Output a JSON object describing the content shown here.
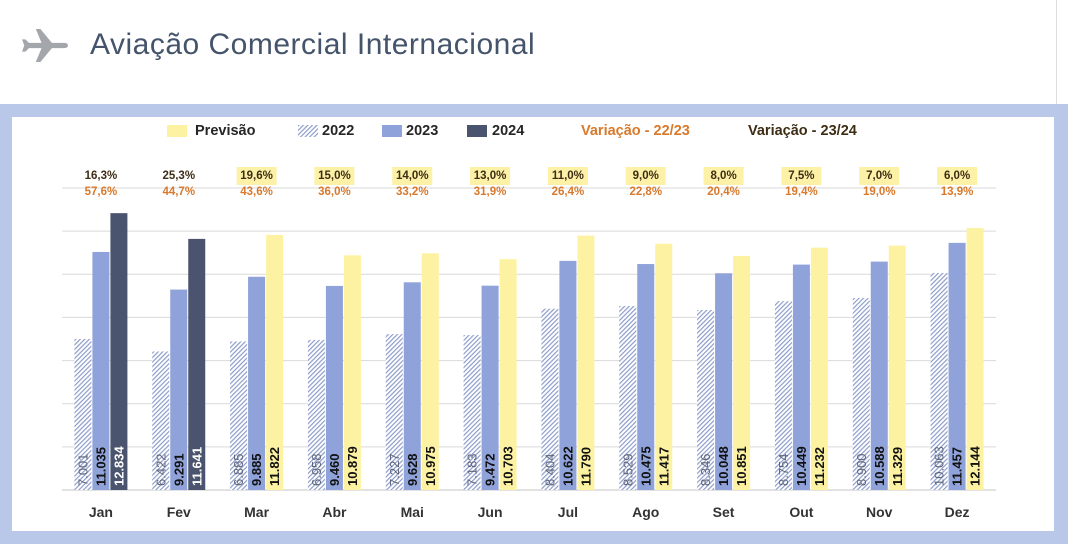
{
  "header": {
    "title": "Aviação Comercial Internacional",
    "icon": "airplane-icon"
  },
  "colors": {
    "title": "#44546a",
    "icon": "#a3a6ab",
    "frame": "#b9c7e9",
    "grid": "#d9d9d9",
    "axis": "#c4c4c4",
    "legend_text": "#262626",
    "tick_label": "#333333",
    "variation_highlight": "#fcf1a6"
  },
  "chart_data": {
    "type": "bar",
    "categories": [
      "Jan",
      "Fev",
      "Mar",
      "Abr",
      "Mai",
      "Jun",
      "Jul",
      "Ago",
      "Set",
      "Out",
      "Nov",
      "Dez"
    ],
    "series": [
      {
        "name": "2022",
        "color": "#8d9dca",
        "label_color": "#5d6479",
        "values": [
          7001,
          6422,
          6885,
          6958,
          7227,
          7183,
          8404,
          8529,
          8346,
          8754,
          8900,
          10063
        ]
      },
      {
        "name": "2023",
        "color": "#8fa2d9",
        "label_color": "#111111",
        "values": [
          11035,
          9291,
          9885,
          9460,
          9628,
          9472,
          10622,
          10475,
          10048,
          10449,
          10588,
          11457
        ]
      },
      {
        "name": "2024",
        "color": "#4b546e",
        "label_color": "#ffffff",
        "values": [
          12834,
          11641,
          null,
          null,
          null,
          null,
          null,
          null,
          null,
          null,
          null,
          null
        ]
      },
      {
        "name": "Previsão",
        "color": "#fdf2a2",
        "label_color": "#111111",
        "values": [
          null,
          null,
          11822,
          10879,
          10975,
          10703,
          11790,
          11417,
          10851,
          11232,
          11329,
          12144
        ]
      }
    ],
    "variations": [
      {
        "name": "Variação - 22/23",
        "color": "#d8792c",
        "values": [
          57.6,
          44.7,
          43.6,
          36.0,
          33.2,
          31.9,
          26.4,
          22.8,
          20.4,
          19.4,
          19.0,
          13.9
        ]
      },
      {
        "name": "Variação - 23/24",
        "color": "#3e2d15",
        "values": [
          16.3,
          25.3,
          19.6,
          15.0,
          14.0,
          13.0,
          11.0,
          9.0,
          8.0,
          7.5,
          7.0,
          6.0
        ]
      }
    ],
    "ylim": [
      0,
      14000
    ],
    "grid_step": 2000,
    "grid": true,
    "legend": "top"
  }
}
